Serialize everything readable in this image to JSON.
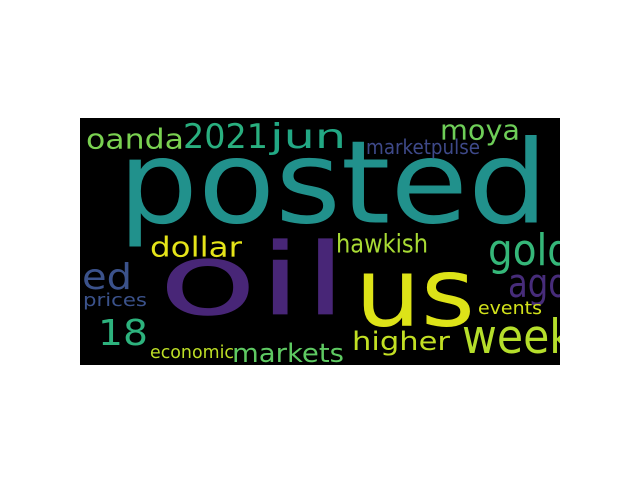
{
  "word_cloud": {
    "background": "#000000",
    "words": [
      {
        "key": "posted",
        "text": "posted",
        "color": "#21918c"
      },
      {
        "key": "oil",
        "text": "oil",
        "color": "#482677"
      },
      {
        "key": "us",
        "text": "us",
        "color": "#dde318"
      },
      {
        "key": "week",
        "text": "week",
        "color": "#b5de2b"
      },
      {
        "key": "gold",
        "text": "gold",
        "color": "#35b779"
      },
      {
        "key": "ago",
        "text": "ago",
        "color": "#472c7a"
      },
      {
        "key": "y2021",
        "text": "2021",
        "color": "#29af7f"
      },
      {
        "key": "jun",
        "text": "jun",
        "color": "#22a884"
      },
      {
        "key": "oanda",
        "text": "oanda",
        "color": "#7ad151"
      },
      {
        "key": "moya",
        "text": "moya",
        "color": "#6ece58"
      },
      {
        "key": "ed",
        "text": "ed",
        "color": "#3b528b"
      },
      {
        "key": "n18",
        "text": "18",
        "color": "#2db27d"
      },
      {
        "key": "dollar",
        "text": "dollar",
        "color": "#e5e419"
      },
      {
        "key": "hawkish",
        "text": "hawkish",
        "color": "#a8db34"
      },
      {
        "key": "markets",
        "text": "markets",
        "color": "#5ec962"
      },
      {
        "key": "higher",
        "text": "higher",
        "color": "#c2df23"
      },
      {
        "key": "marketpulse",
        "text": "marketpulse",
        "color": "#3e4989"
      },
      {
        "key": "prices",
        "text": "prices",
        "color": "#3b528b"
      },
      {
        "key": "events",
        "text": "events",
        "color": "#d2e21b"
      },
      {
        "key": "economic",
        "text": "economic",
        "color": "#bddf26"
      }
    ]
  }
}
